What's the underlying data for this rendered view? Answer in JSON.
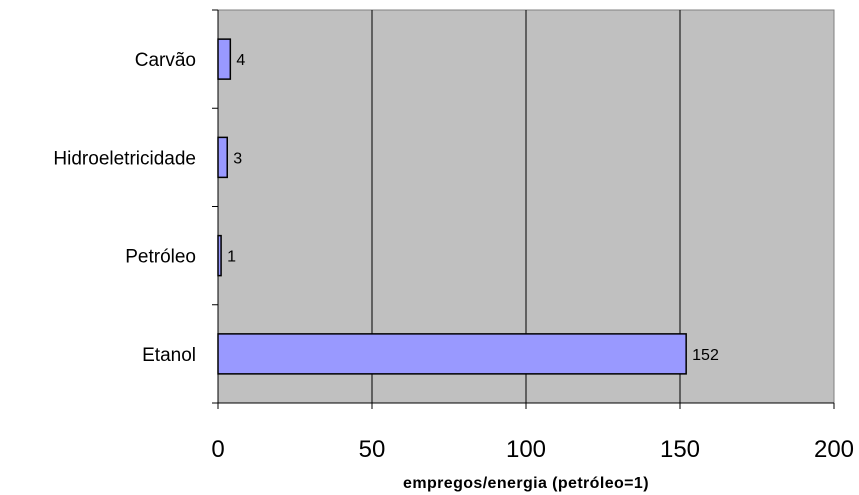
{
  "chart_data": {
    "type": "bar",
    "orientation": "horizontal",
    "categories": [
      "Carvão",
      "Hidroeletricidade",
      "Petróleo",
      "Etanol"
    ],
    "values": [
      4,
      3,
      1,
      152
    ],
    "data_labels": [
      "4",
      "3",
      "1",
      "152"
    ],
    "title": "",
    "xlabel": "empregos/energia (petróleo=1)",
    "ylabel": "",
    "xlim": [
      0,
      200
    ],
    "x_ticks": [
      0,
      50,
      100,
      150,
      200
    ],
    "x_tick_labels": [
      "0",
      "50",
      "100",
      "150",
      "200"
    ],
    "grid": "vertical",
    "legend": "none",
    "colors": {
      "bar_fill": "#9999ff",
      "bar_stroke": "#000000",
      "plot_background": "#c0c0c0",
      "gridline": "#000000"
    }
  }
}
